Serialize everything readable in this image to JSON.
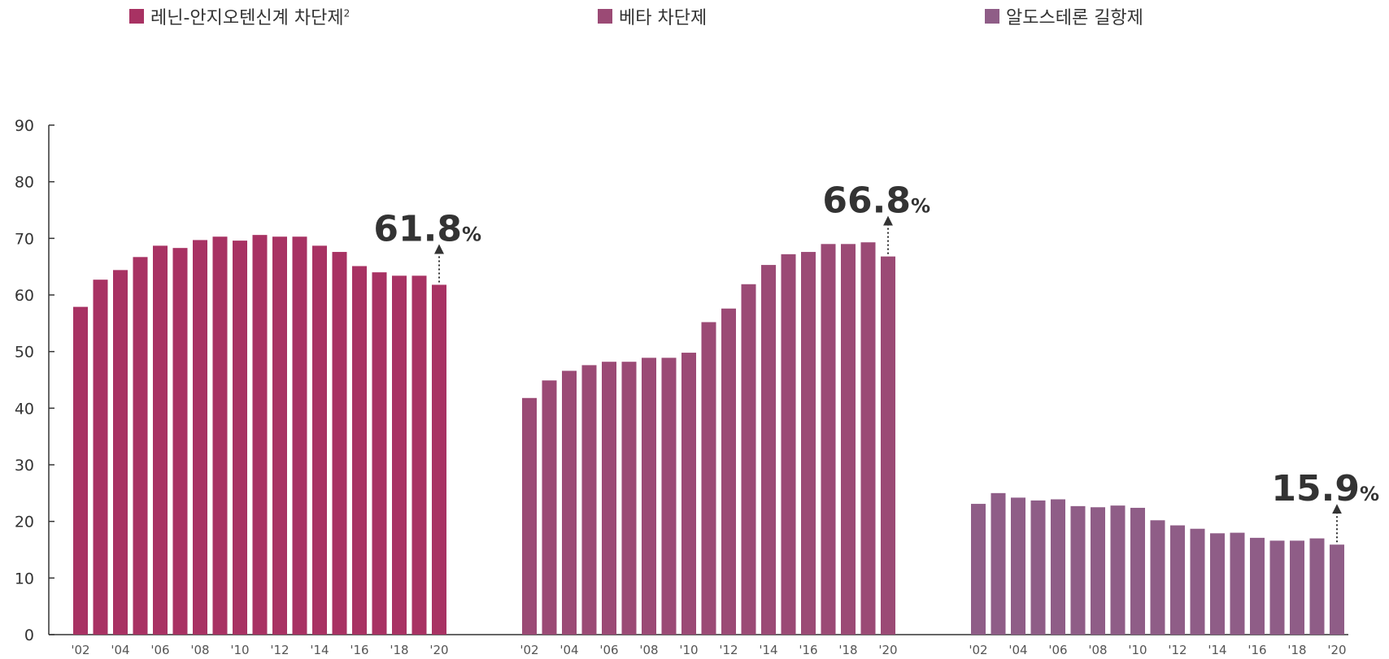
{
  "chart_data": {
    "type": "bar",
    "y_axis": {
      "ylim": [
        0,
        90
      ],
      "ticks": [
        0,
        10,
        20,
        30,
        40,
        50,
        60,
        70,
        80,
        90
      ]
    },
    "categories": [
      "'02",
      "'03",
      "'04",
      "'05",
      "'06",
      "'07",
      "'08",
      "'09",
      "'10",
      "'11",
      "'12",
      "'13",
      "'14",
      "'15",
      "'16",
      "'17",
      "'18",
      "'19",
      "'20"
    ],
    "tick_labels": [
      "'02",
      "",
      "'04",
      "",
      "'06",
      "",
      "'08",
      "",
      "'10",
      "",
      "'12",
      "",
      "'14",
      "",
      "'16",
      "",
      "'18",
      "",
      "'20"
    ],
    "series": [
      {
        "name": "레닌-안지오텐신계 차단제",
        "name_superscript": "2",
        "color": "#a83263",
        "values": [
          57.9,
          62.7,
          64.4,
          66.7,
          68.7,
          68.3,
          69.7,
          70.3,
          69.6,
          70.6,
          70.3,
          70.3,
          68.7,
          67.6,
          65.1,
          64.0,
          63.4,
          63.4,
          61.8
        ],
        "final_label": {
          "number": "61.8",
          "unit": "%"
        }
      },
      {
        "name": "베타 차단제",
        "name_superscript": "",
        "color": "#9b4a75",
        "values": [
          41.8,
          44.9,
          46.6,
          47.6,
          48.2,
          48.2,
          48.9,
          48.9,
          49.8,
          55.2,
          57.6,
          61.9,
          65.3,
          67.2,
          67.6,
          69.0,
          69.0,
          69.3,
          66.8
        ],
        "final_label": {
          "number": "66.8",
          "unit": "%"
        }
      },
      {
        "name": "알도스테론 길항제",
        "name_superscript": "",
        "color": "#8f5d87",
        "values": [
          23.1,
          25.0,
          24.2,
          23.7,
          23.9,
          22.7,
          22.5,
          22.8,
          22.4,
          20.2,
          19.3,
          18.7,
          17.9,
          18.0,
          17.1,
          16.6,
          16.6,
          17.0,
          15.9
        ],
        "final_label": {
          "number": "15.9",
          "unit": "%"
        }
      }
    ],
    "grid": false,
    "legend_placement": "top"
  }
}
